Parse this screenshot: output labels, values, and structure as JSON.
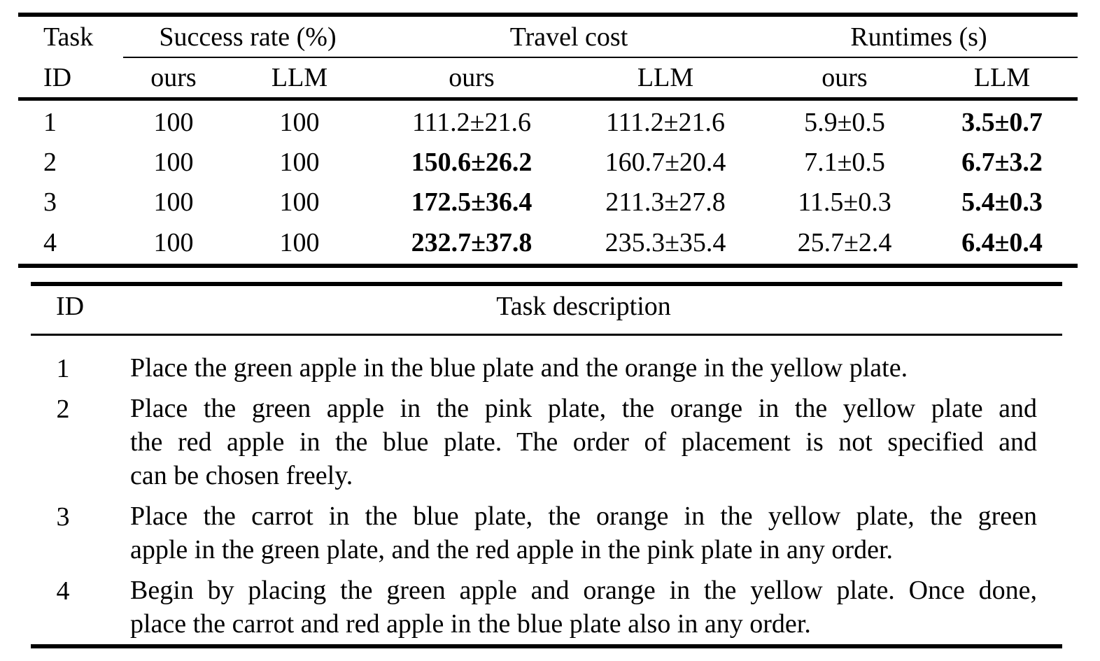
{
  "table1": {
    "header": {
      "task_id_top": "Task",
      "task_id_bottom": "ID",
      "success_rate": "Success rate (%)",
      "travel_cost": "Travel cost",
      "runtimes": "Runtimes (s)",
      "sub": [
        "ours",
        "LLM",
        "ours",
        "LLM",
        "ours",
        "LLM"
      ]
    },
    "rows": [
      {
        "id": "1",
        "sr_ours": "100",
        "sr_llm": "100",
        "tc_ours": "111.2±21.6",
        "tc_llm": "111.2±21.6",
        "rt_ours": "5.9±0.5",
        "rt_llm": "3.5±0.7"
      },
      {
        "id": "2",
        "sr_ours": "100",
        "sr_llm": "100",
        "tc_ours": "150.6±26.2",
        "tc_llm": "160.7±20.4",
        "rt_ours": "7.1±0.5",
        "rt_llm": "6.7±3.2"
      },
      {
        "id": "3",
        "sr_ours": "100",
        "sr_llm": "100",
        "tc_ours": "172.5±36.4",
        "tc_llm": "211.3±27.8",
        "rt_ours": "11.5±0.3",
        "rt_llm": "5.4±0.3"
      },
      {
        "id": "4",
        "sr_ours": "100",
        "sr_llm": "100",
        "tc_ours": "232.7±37.8",
        "tc_llm": "235.3±35.4",
        "rt_ours": "25.7±2.4",
        "rt_llm": "6.4±0.4"
      }
    ],
    "bold_cells": [
      "r0.rt_llm",
      "r1.tc_ours",
      "r1.rt_llm",
      "r2.tc_ours",
      "r2.rt_llm",
      "r3.tc_ours",
      "r3.rt_llm"
    ]
  },
  "table2": {
    "header": {
      "id": "ID",
      "description": "Task description"
    },
    "rows": [
      {
        "id": "1",
        "lines": [
          "Place the green apple in the blue plate and the orange in the yellow plate."
        ]
      },
      {
        "id": "2",
        "lines": [
          "Place the green apple in the pink plate, the orange in the yellow plate and",
          "the red apple in the blue plate. The order of placement is not specified and",
          "can be chosen freely."
        ]
      },
      {
        "id": "3",
        "lines": [
          "Place the carrot in the blue plate, the orange in the yellow plate, the green",
          "apple in the green plate, and the red apple in the pink plate in any order."
        ]
      },
      {
        "id": "4",
        "lines": [
          "Begin by placing the green apple and orange in the yellow plate. Once done,",
          "place the carrot and red apple in the blue plate also in any order."
        ]
      }
    ]
  }
}
